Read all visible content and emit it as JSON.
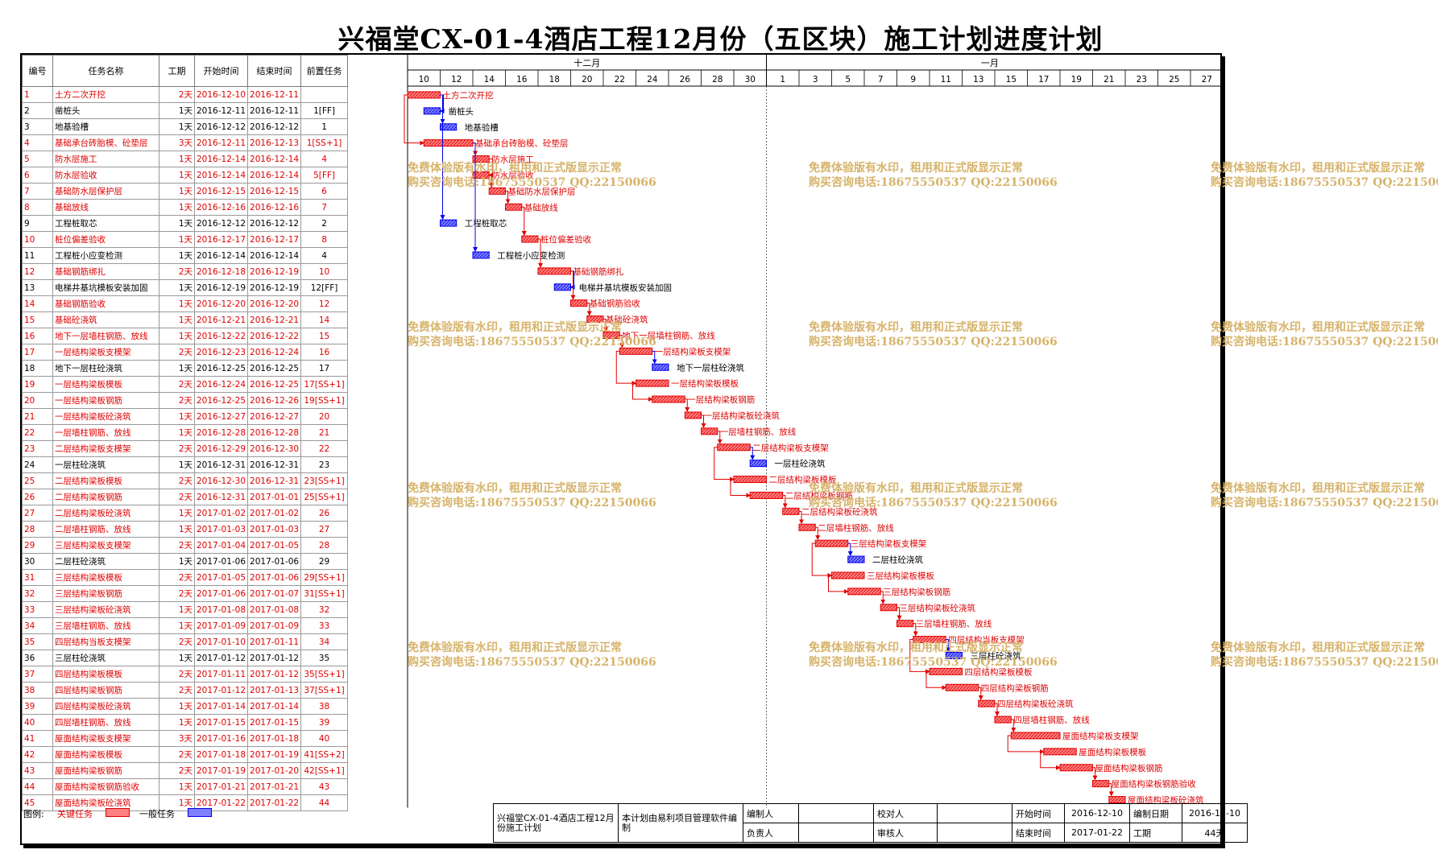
{
  "title": "兴福堂CX-01-4酒店工程12月份（五区块）施工计划进度计划",
  "headers": {
    "id": "编号",
    "name": "任务名称",
    "duration": "工期",
    "start": "开始时间",
    "end": "结束时间",
    "pred": "前置任务"
  },
  "months": [
    {
      "label": "十二月"
    },
    {
      "label": "一月"
    }
  ],
  "day_ticks": [
    "10",
    "12",
    "14",
    "16",
    "18",
    "20",
    "22",
    "24",
    "26",
    "28",
    "30",
    "1",
    "3",
    "5",
    "7",
    "9",
    "11",
    "13",
    "15",
    "17",
    "19",
    "21",
    "23",
    "25",
    "27"
  ],
  "watermark": {
    "line1": "免费体验版有水印，租用和正式版显示正常",
    "line2": "购买咨询电话:18675550537 QQ:22150066"
  },
  "colors": {
    "critical": "#e00000",
    "normal": "#0000ee",
    "critical_fill": "#ff8080",
    "normal_fill": "#8080ff",
    "watermark": "#d6b36a"
  },
  "chart_data": {
    "type": "gantt",
    "x_start": "2016-12-10",
    "x_end": "2017-01-28",
    "tasks": [
      {
        "id": "1",
        "name": "土方二次开挖",
        "duration": "2天",
        "start": "2016-12-10",
        "end": "2016-12-11",
        "pred": "",
        "critical": true,
        "label_inside": false
      },
      {
        "id": "2",
        "name": "凿桩头",
        "duration": "1天",
        "start": "2016-12-11",
        "end": "2016-12-11",
        "pred": "1[FF]",
        "critical": false
      },
      {
        "id": "3",
        "name": "地基验槽",
        "duration": "1天",
        "start": "2016-12-12",
        "end": "2016-12-12",
        "pred": "1",
        "critical": false
      },
      {
        "id": "4",
        "name": "基础承台砖胎模、砼垫层",
        "duration": "3天",
        "start": "2016-12-11",
        "end": "2016-12-13",
        "pred": "1[SS+1]",
        "critical": true
      },
      {
        "id": "5",
        "name": "防水层施工",
        "duration": "1天",
        "start": "2016-12-14",
        "end": "2016-12-14",
        "pred": "4",
        "critical": true
      },
      {
        "id": "6",
        "name": "防水层验收",
        "duration": "1天",
        "start": "2016-12-14",
        "end": "2016-12-14",
        "pred": "5[FF]",
        "critical": true
      },
      {
        "id": "7",
        "name": "基础防水层保护层",
        "duration": "1天",
        "start": "2016-12-15",
        "end": "2016-12-15",
        "pred": "6",
        "critical": true
      },
      {
        "id": "8",
        "name": "基础放线",
        "duration": "1天",
        "start": "2016-12-16",
        "end": "2016-12-16",
        "pred": "7",
        "critical": true
      },
      {
        "id": "9",
        "name": "工程桩取芯",
        "duration": "1天",
        "start": "2016-12-12",
        "end": "2016-12-12",
        "pred": "2",
        "critical": false
      },
      {
        "id": "10",
        "name": "桩位偏差验收",
        "duration": "1天",
        "start": "2016-12-17",
        "end": "2016-12-17",
        "pred": "8",
        "critical": true
      },
      {
        "id": "11",
        "name": "工程桩小应变检测",
        "duration": "1天",
        "start": "2016-12-14",
        "end": "2016-12-14",
        "pred": "4",
        "critical": false
      },
      {
        "id": "12",
        "name": "基础钢筋绑扎",
        "duration": "2天",
        "start": "2016-12-18",
        "end": "2016-12-19",
        "pred": "10",
        "critical": true
      },
      {
        "id": "13",
        "name": "电梯井基坑模板安装加固",
        "duration": "1天",
        "start": "2016-12-19",
        "end": "2016-12-19",
        "pred": "12[FF]",
        "critical": false
      },
      {
        "id": "14",
        "name": "基础钢筋验收",
        "duration": "1天",
        "start": "2016-12-20",
        "end": "2016-12-20",
        "pred": "12",
        "critical": true
      },
      {
        "id": "15",
        "name": "基础砼浇筑",
        "duration": "1天",
        "start": "2016-12-21",
        "end": "2016-12-21",
        "pred": "14",
        "critical": true
      },
      {
        "id": "16",
        "name": "地下一层墙柱钢筋、放线",
        "duration": "1天",
        "start": "2016-12-22",
        "end": "2016-12-22",
        "pred": "15",
        "critical": true
      },
      {
        "id": "17",
        "name": "一层结构梁板支模架",
        "duration": "2天",
        "start": "2016-12-23",
        "end": "2016-12-24",
        "pred": "16",
        "critical": true
      },
      {
        "id": "18",
        "name": "地下一层柱砼浇筑",
        "duration": "1天",
        "start": "2016-12-25",
        "end": "2016-12-25",
        "pred": "17",
        "critical": false
      },
      {
        "id": "19",
        "name": "一层结构梁板模板",
        "duration": "2天",
        "start": "2016-12-24",
        "end": "2016-12-25",
        "pred": "17[SS+1]",
        "critical": true
      },
      {
        "id": "20",
        "name": "一层结构梁板钢筋",
        "duration": "2天",
        "start": "2016-12-25",
        "end": "2016-12-26",
        "pred": "19[SS+1]",
        "critical": true
      },
      {
        "id": "21",
        "name": "一层结构梁板砼浇筑",
        "duration": "1天",
        "start": "2016-12-27",
        "end": "2016-12-27",
        "pred": "20",
        "critical": true
      },
      {
        "id": "22",
        "name": "一层墙柱钢筋、放线",
        "duration": "1天",
        "start": "2016-12-28",
        "end": "2016-12-28",
        "pred": "21",
        "critical": true
      },
      {
        "id": "23",
        "name": "二层结构梁板支模架",
        "duration": "2天",
        "start": "2016-12-29",
        "end": "2016-12-30",
        "pred": "22",
        "critical": true
      },
      {
        "id": "24",
        "name": "一层柱砼浇筑",
        "duration": "1天",
        "start": "2016-12-31",
        "end": "2016-12-31",
        "pred": "23",
        "critical": false
      },
      {
        "id": "25",
        "name": "二层结构梁板模板",
        "duration": "2天",
        "start": "2016-12-30",
        "end": "2016-12-31",
        "pred": "23[SS+1]",
        "critical": true
      },
      {
        "id": "26",
        "name": "二层结构梁板钢筋",
        "duration": "2天",
        "start": "2016-12-31",
        "end": "2017-01-01",
        "pred": "25[SS+1]",
        "critical": true
      },
      {
        "id": "27",
        "name": "二层结构梁板砼浇筑",
        "duration": "1天",
        "start": "2017-01-02",
        "end": "2017-01-02",
        "pred": "26",
        "critical": true
      },
      {
        "id": "28",
        "name": "二层墙柱钢筋、放线",
        "duration": "1天",
        "start": "2017-01-03",
        "end": "2017-01-03",
        "pred": "27",
        "critical": true
      },
      {
        "id": "29",
        "name": "三层结构梁板支模架",
        "duration": "2天",
        "start": "2017-01-04",
        "end": "2017-01-05",
        "pred": "28",
        "critical": true
      },
      {
        "id": "30",
        "name": "二层柱砼浇筑",
        "duration": "1天",
        "start": "2017-01-06",
        "end": "2017-01-06",
        "pred": "29",
        "critical": false
      },
      {
        "id": "31",
        "name": "三层结构梁板模板",
        "duration": "2天",
        "start": "2017-01-05",
        "end": "2017-01-06",
        "pred": "29[SS+1]",
        "critical": true
      },
      {
        "id": "32",
        "name": "三层结构梁板钢筋",
        "duration": "2天",
        "start": "2017-01-06",
        "end": "2017-01-07",
        "pred": "31[SS+1]",
        "critical": true
      },
      {
        "id": "33",
        "name": "三层结构梁板砼浇筑",
        "duration": "1天",
        "start": "2017-01-08",
        "end": "2017-01-08",
        "pred": "32",
        "critical": true
      },
      {
        "id": "34",
        "name": "三层墙柱钢筋、放线",
        "duration": "1天",
        "start": "2017-01-09",
        "end": "2017-01-09",
        "pred": "33",
        "critical": true
      },
      {
        "id": "35",
        "name": "四层结构当板支模架",
        "duration": "2天",
        "start": "2017-01-10",
        "end": "2017-01-11",
        "pred": "34",
        "critical": true
      },
      {
        "id": "36",
        "name": "三层柱砼浇筑",
        "duration": "1天",
        "start": "2017-01-12",
        "end": "2017-01-12",
        "pred": "35",
        "critical": false
      },
      {
        "id": "37",
        "name": "四层结构梁板模板",
        "duration": "2天",
        "start": "2017-01-11",
        "end": "2017-01-12",
        "pred": "35[SS+1]",
        "critical": true
      },
      {
        "id": "38",
        "name": "四层结构梁板钢筋",
        "duration": "2天",
        "start": "2017-01-12",
        "end": "2017-01-13",
        "pred": "37[SS+1]",
        "critical": true
      },
      {
        "id": "39",
        "name": "四层结构梁板砼浇筑",
        "duration": "1天",
        "start": "2017-01-14",
        "end": "2017-01-14",
        "pred": "38",
        "critical": true
      },
      {
        "id": "40",
        "name": "四层墙柱钢筋、放线",
        "duration": "1天",
        "start": "2017-01-15",
        "end": "2017-01-15",
        "pred": "39",
        "critical": true
      },
      {
        "id": "41",
        "name": "屋面结构梁板支模架",
        "duration": "3天",
        "start": "2017-01-16",
        "end": "2017-01-18",
        "pred": "40",
        "critical": true
      },
      {
        "id": "42",
        "name": "屋面结构梁板模板",
        "duration": "2天",
        "start": "2017-01-18",
        "end": "2017-01-19",
        "pred": "41[SS+2]",
        "critical": true
      },
      {
        "id": "43",
        "name": "屋面结构梁板钢筋",
        "duration": "2天",
        "start": "2017-01-19",
        "end": "2017-01-20",
        "pred": "42[SS+1]",
        "critical": true
      },
      {
        "id": "44",
        "name": "屋面结构梁板钢筋验收",
        "duration": "1天",
        "start": "2017-01-21",
        "end": "2017-01-21",
        "pred": "43",
        "critical": true
      },
      {
        "id": "45",
        "name": "屋面结构梁板砼浇筑",
        "duration": "1天",
        "start": "2017-01-22",
        "end": "2017-01-22",
        "pred": "44",
        "critical": true
      }
    ]
  },
  "legend": {
    "label": "图例:",
    "critical": "关键任务",
    "normal": "一般任务"
  },
  "footer": {
    "plan_name": "兴福堂CX-01-4酒店工程12月份施工计划",
    "software_note": "本计划由易利项目管理软件编制",
    "compiler_label": "编制人",
    "compiler_value": "",
    "checker_label": "校对人",
    "checker_value": "",
    "responsible_label": "负责人",
    "responsible_value": "",
    "reviewer_label": "审核人",
    "reviewer_value": "",
    "start_label": "开始时间",
    "start_value": "2016-12-10",
    "compile_date_label": "编制日期",
    "compile_date_value": "2016-12-10",
    "end_label": "结束时间",
    "end_value": "2017-01-22",
    "duration_label": "工期",
    "duration_value": "44天"
  }
}
